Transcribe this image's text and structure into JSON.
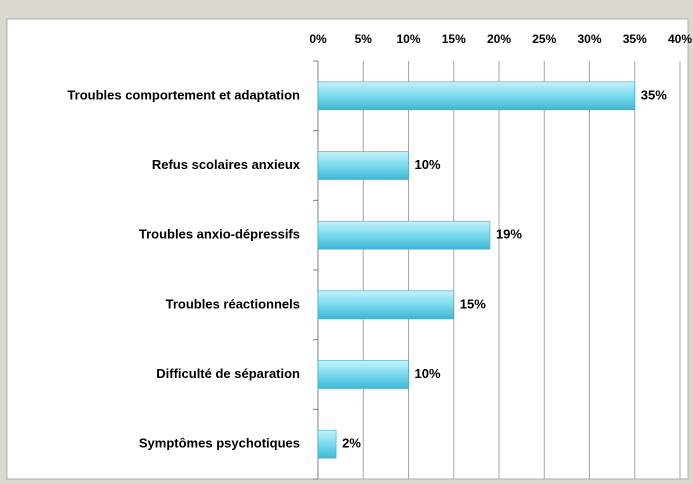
{
  "chart_data": {
    "type": "bar",
    "orientation": "horizontal",
    "categories": [
      "Troubles comportement et adaptation",
      "Refus scolaires anxieux",
      "Troubles anxio-dépressifs",
      "Troubles réactionnels",
      "Difficulté de séparation",
      "Symptômes psychotiques"
    ],
    "values": [
      35,
      10,
      19,
      15,
      10,
      2
    ],
    "value_labels": [
      "35%",
      "10%",
      "19%",
      "15%",
      "10%",
      "2%"
    ],
    "color": "#5fd0ea",
    "xlim": [
      0,
      40
    ],
    "xticks": [
      {
        "value": 0,
        "label": "0%"
      },
      {
        "value": 5,
        "label": "5%"
      },
      {
        "value": 10,
        "label": "10%"
      },
      {
        "value": 15,
        "label": "15%"
      },
      {
        "value": 20,
        "label": "20%"
      },
      {
        "value": 25,
        "label": "25%"
      },
      {
        "value": 30,
        "label": "30%"
      },
      {
        "value": 35,
        "label": "35%"
      },
      {
        "value": 40,
        "label": "40%"
      }
    ],
    "grid": true
  }
}
